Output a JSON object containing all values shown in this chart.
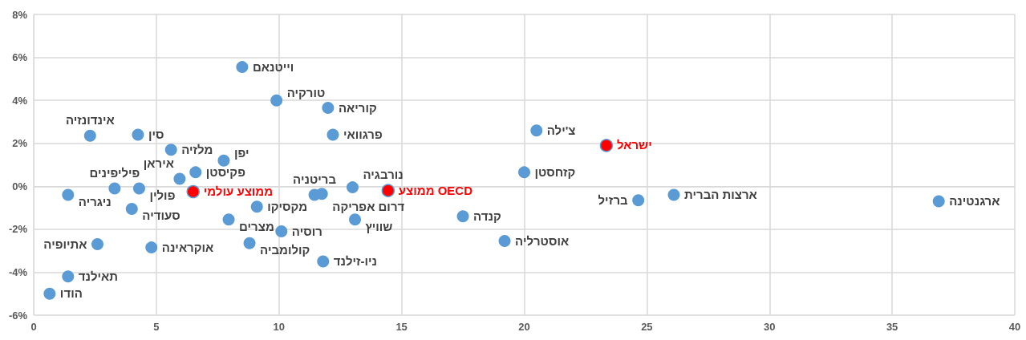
{
  "chart_data": {
    "type": "scatter",
    "xlim": [
      0,
      40
    ],
    "xticks": [
      0,
      5,
      10,
      15,
      20,
      25,
      30,
      35,
      40
    ],
    "ylim": [
      -6,
      8
    ],
    "yticks": [
      {
        "value": -6,
        "label": "-6%"
      },
      {
        "value": -4,
        "label": "-4%"
      },
      {
        "value": -2,
        "label": "-2%"
      },
      {
        "value": 0,
        "label": "0%"
      },
      {
        "value": 2,
        "label": "2%"
      },
      {
        "value": 4,
        "label": "4%"
      },
      {
        "value": 6,
        "label": "6%"
      },
      {
        "value": 8,
        "label": "8%"
      }
    ],
    "grid": true,
    "marker": "circle",
    "series": [
      {
        "color": "#5b9bd5",
        "x": [
          0.65,
          1.4,
          1.4,
          2.3,
          4.25,
          3.3,
          4.3,
          4.0,
          2.6,
          4.8,
          5.6,
          6.6,
          5.95,
          7.75,
          7.95,
          9.1,
          8.8,
          8.5,
          9.9,
          12.0,
          12.2,
          10.1,
          11.45,
          11.75,
          13.0,
          13.1,
          11.8,
          17.5,
          20.5,
          20.0,
          24.65,
          26.1,
          36.9,
          19.2
        ],
        "values": [
          -5.0,
          -4.2,
          -0.4,
          2.35,
          2.4,
          -0.1,
          -0.1,
          -1.05,
          -2.7,
          -2.85,
          1.7,
          0.65,
          0.35,
          1.2,
          -1.55,
          -0.95,
          -2.65,
          5.55,
          4.0,
          3.65,
          2.4,
          -2.1,
          -0.4,
          -0.35,
          -0.05,
          -1.55,
          -3.5,
          -1.4,
          2.6,
          0.65,
          -0.65,
          -0.4,
          -0.7,
          -2.55
        ]
      },
      {
        "color": "#ff0000",
        "x": [
          6.5,
          14.45,
          23.35
        ],
        "values": [
          -0.25,
          -0.2,
          1.9
        ]
      }
    ],
    "annotations": [
      {
        "text": "הודו",
        "x": 0.65,
        "y": -5.0
      },
      {
        "text": "תאילנד",
        "x": 1.4,
        "y": -4.2
      },
      {
        "text": "ניגריה",
        "x": 1.4,
        "y": -0.4
      },
      {
        "text": "אינדונזיה",
        "x": 2.3,
        "y": 2.35
      },
      {
        "text": "סין",
        "x": 4.25,
        "y": 2.4
      },
      {
        "text": "פיליפינים",
        "x": 3.3,
        "y": -0.1
      },
      {
        "text": "פולין",
        "x": 4.3,
        "y": -0.1
      },
      {
        "text": "סעודיה",
        "x": 4.0,
        "y": -1.05
      },
      {
        "text": "אתיופיה",
        "x": 2.6,
        "y": -2.7
      },
      {
        "text": "אוקראינה",
        "x": 4.8,
        "y": -2.85
      },
      {
        "text": "מלזיה",
        "x": 5.6,
        "y": 1.7
      },
      {
        "text": "פקיסטן",
        "x": 6.6,
        "y": 0.65
      },
      {
        "text": "איראן",
        "x": 5.95,
        "y": 0.35
      },
      {
        "text": "יפן",
        "x": 7.75,
        "y": 1.2
      },
      {
        "text": "מצרים",
        "x": 7.95,
        "y": -1.55
      },
      {
        "text": "מקסיקו",
        "x": 9.1,
        "y": -0.95
      },
      {
        "text": "קולומביה",
        "x": 8.8,
        "y": -2.65
      },
      {
        "text": "וייטנאם",
        "x": 8.5,
        "y": 5.55
      },
      {
        "text": "טורקיה",
        "x": 9.9,
        "y": 4.0
      },
      {
        "text": "קוריאה",
        "x": 12.0,
        "y": 3.65
      },
      {
        "text": "פרגוואי",
        "x": 12.2,
        "y": 2.4
      },
      {
        "text": "רוסיה",
        "x": 10.1,
        "y": -2.1
      },
      {
        "text": "בריטניה",
        "x": 11.45,
        "y": -0.4
      },
      {
        "text": "דרום אפריקה",
        "x": 11.75,
        "y": -0.35
      },
      {
        "text": "נורבגיה",
        "x": 13.0,
        "y": -0.05
      },
      {
        "text": "שוויץ",
        "x": 13.1,
        "y": -1.55
      },
      {
        "text": "ניו-זילנד",
        "x": 11.8,
        "y": -3.5
      },
      {
        "text": "קנדה",
        "x": 17.5,
        "y": -1.4
      },
      {
        "text": "צ'ילה",
        "x": 20.5,
        "y": 2.6
      },
      {
        "text": "קזחסטן",
        "x": 20.0,
        "y": 0.65
      },
      {
        "text": "ברזיל",
        "x": 24.65,
        "y": -0.65
      },
      {
        "text": "ארצות הברית",
        "x": 26.1,
        "y": -0.4
      },
      {
        "text": "ארגנטינה",
        "x": 36.9,
        "y": -0.7
      },
      {
        "text": "אוסטרליה",
        "x": 19.2,
        "y": -2.55
      },
      {
        "text": "ממוצע עולמי",
        "x": 6.5,
        "y": -0.25
      },
      {
        "text": "ממוצע OECD",
        "x": 14.45,
        "y": -0.2
      },
      {
        "text": "ישראל",
        "x": 23.35,
        "y": 1.9
      }
    ]
  }
}
